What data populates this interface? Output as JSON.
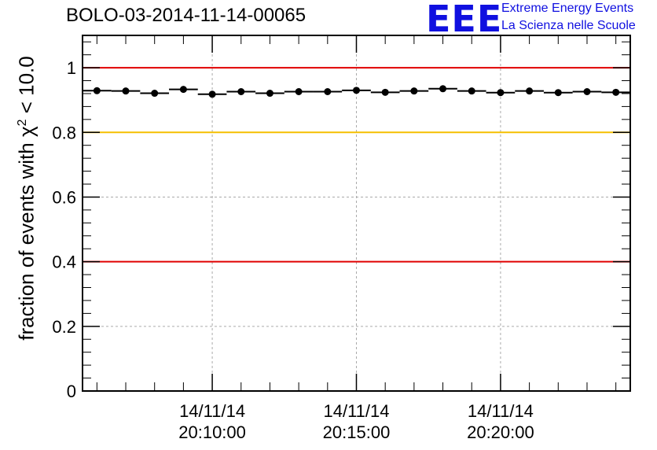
{
  "title": "BOLO-03-2014-11-14-00065",
  "logo": {
    "mark": "EEE",
    "line1": "Extreme Energy Events",
    "line2": "La Scienza nelle Scuole"
  },
  "chart_data": {
    "type": "scatter",
    "ylabel_prefix": "fraction of events with ",
    "ylabel_symbol": "χ",
    "ylabel_exp": "2",
    "ylabel_suffix": " < 10.0",
    "xlabel": "",
    "ylim": [
      0,
      1.1
    ],
    "y_ticks": [
      {
        "value": 0,
        "label": "0"
      },
      {
        "value": 0.2,
        "label": "0.2"
      },
      {
        "value": 0.4,
        "label": "0.4"
      },
      {
        "value": 0.6,
        "label": "0.6"
      },
      {
        "value": 0.8,
        "label": "0.8"
      },
      {
        "value": 1.0,
        "label": "1"
      }
    ],
    "xlim": [
      "20:05:30",
      "20:24:30"
    ],
    "x_ticks": [
      {
        "value": "20:10:00",
        "date": "14/11/14",
        "time": "20:10:00"
      },
      {
        "value": "20:15:00",
        "date": "14/11/14",
        "time": "20:15:00"
      },
      {
        "value": "20:20:00",
        "date": "14/11/14",
        "time": "20:20:00"
      }
    ],
    "grid": true,
    "reference_lines": [
      {
        "y": 1.0,
        "color": "#e00000"
      },
      {
        "y": 0.8,
        "color": "#f5c000"
      },
      {
        "y": 0.4,
        "color": "#e00000"
      }
    ],
    "series": [
      {
        "bin_width_seconds": 60,
        "points": [
          {
            "x": "20:06:00",
            "y": 0.929
          },
          {
            "x": "20:07:00",
            "y": 0.928
          },
          {
            "x": "20:08:00",
            "y": 0.921
          },
          {
            "x": "20:09:00",
            "y": 0.933
          },
          {
            "x": "20:10:00",
            "y": 0.918
          },
          {
            "x": "20:11:00",
            "y": 0.926
          },
          {
            "x": "20:12:00",
            "y": 0.921
          },
          {
            "x": "20:13:00",
            "y": 0.926
          },
          {
            "x": "20:14:00",
            "y": 0.926
          },
          {
            "x": "20:15:00",
            "y": 0.93
          },
          {
            "x": "20:16:00",
            "y": 0.924
          },
          {
            "x": "20:17:00",
            "y": 0.928
          },
          {
            "x": "20:18:00",
            "y": 0.935
          },
          {
            "x": "20:19:00",
            "y": 0.928
          },
          {
            "x": "20:20:00",
            "y": 0.923
          },
          {
            "x": "20:21:00",
            "y": 0.928
          },
          {
            "x": "20:22:00",
            "y": 0.923
          },
          {
            "x": "20:23:00",
            "y": 0.926
          },
          {
            "x": "20:24:00",
            "y": 0.924
          }
        ]
      }
    ]
  }
}
